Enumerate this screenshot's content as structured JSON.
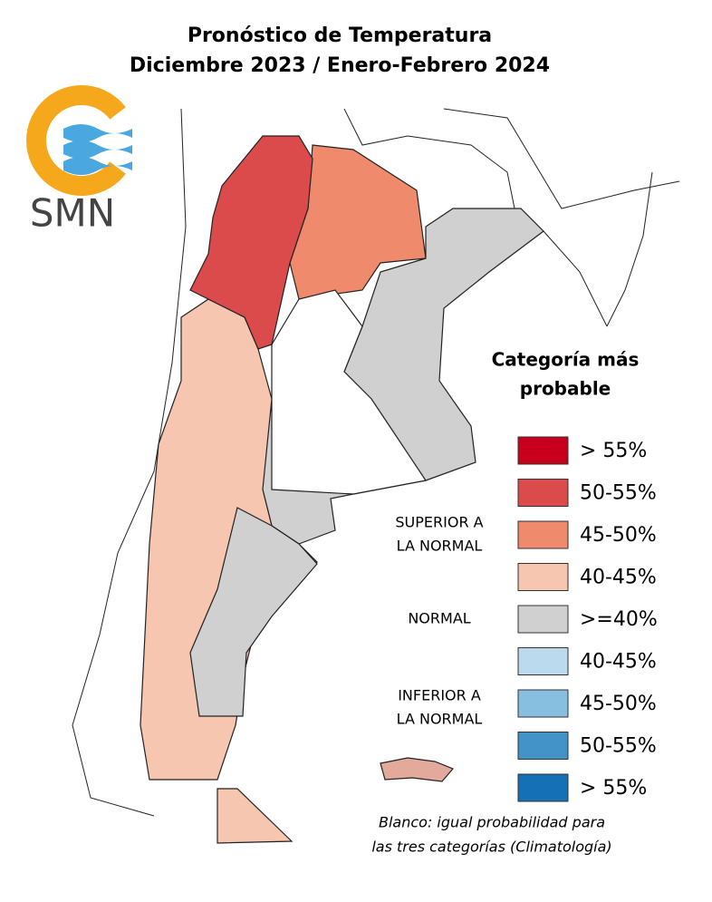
{
  "header": {
    "title_lines": [
      "Pronóstico de Temperatura",
      "Diciembre 2023 / Enero-Febrero 2024"
    ]
  },
  "logo": {
    "text": "SMN"
  },
  "legend": {
    "title_lines": [
      "Categoría más",
      "probable"
    ],
    "items": [
      {
        "label": "> 55%",
        "color": "#c8001e"
      },
      {
        "label": "50-55%",
        "color": "#dc4b4b"
      },
      {
        "label": "45-50%",
        "color": "#ef8a6d"
      },
      {
        "label": "40-45%",
        "color": "#f6c6b1"
      },
      {
        "label": ">=40%",
        "color": "#d0d0d0"
      },
      {
        "label": "40-45%",
        "color": "#bcdaed"
      },
      {
        "label": "45-50%",
        "color": "#87bfe0"
      },
      {
        "label": "50-55%",
        "color": "#4393c8"
      },
      {
        "label": "> 55%",
        "color": "#1570b5"
      }
    ],
    "groups": [
      {
        "label_lines": [
          "SUPERIOR A",
          "LA NORMAL"
        ]
      },
      {
        "label_lines": [
          "NORMAL"
        ]
      },
      {
        "label_lines": [
          "INFERIOR A",
          "LA NORMAL"
        ]
      }
    ]
  },
  "note": {
    "lines": [
      "Blanco: igual probabilidad para",
      "las tres categorías (Climatología)"
    ]
  }
}
